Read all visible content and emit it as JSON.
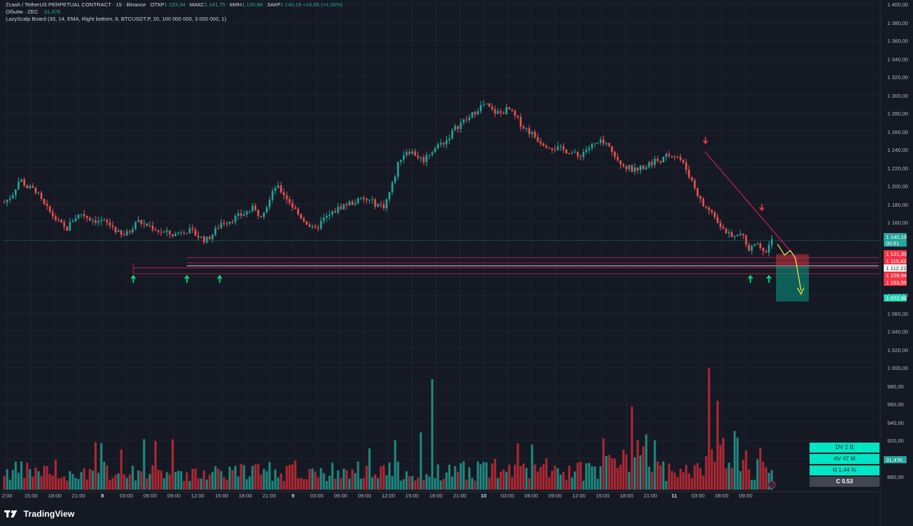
{
  "header": {
    "symbol": "Zcash / TetherUS PERPETUAL CONTRACT · 15 · Binance",
    "open_label": "ОТКР",
    "open": "1 123,34",
    "high_label": "МАКС",
    "high": "1 141,75",
    "low_label": "МИН",
    "low": "1 120,88",
    "close_label": "ЗАКР",
    "close": "1 140,19",
    "change": "+16,86 (+1,50%)",
    "volume_label": "Объём · ZEC",
    "volume_value": "31,47K",
    "indicator": "LazyScalp Board (30, 14, EMA, Right bottom, 8, BTCUSDT.P, 20, 100 000 000, 3 000 000, 1)"
  },
  "price_axis": {
    "ticks": [
      "1 400,00",
      "1 380,00",
      "1 360,00",
      "1 340,00",
      "1 320,00",
      "1 300,00",
      "1 280,00",
      "1 260,00",
      "1 240,00",
      "1 220,00",
      "1 200,00",
      "1 180,00",
      "1 160,00",
      "1 080,00",
      "1 060,00",
      "1 040,00",
      "1 020,00",
      "1 000,00",
      "980,00",
      "960,00",
      "940,00",
      "920,00",
      "900,00",
      "880,00"
    ],
    "tags": [
      {
        "text": "1 140,19",
        "color": "#26a69a"
      },
      {
        "text": "00:51",
        "color": "#26a69a"
      },
      {
        "text": "1 121,35",
        "color": "#f23645"
      },
      {
        "text": "1 115,42",
        "color": "#f23645"
      },
      {
        "text": "1 112,22",
        "color": "#ffffff"
      },
      {
        "text": "1 109,94",
        "color": "#f23645"
      },
      {
        "text": "1 103,55",
        "color": "#f23645"
      },
      {
        "text": "1 072,96",
        "color": "#22d3b4"
      },
      {
        "text": "31,47K",
        "color": "#26a69a"
      }
    ]
  },
  "time_axis": {
    "labels": [
      "2:00",
      "15:00",
      "18:00",
      "21:00",
      "8",
      "03:00",
      "06:00",
      "09:00",
      "12:00",
      "15:00",
      "18:00",
      "21:00",
      "9",
      "03:00",
      "06:00",
      "09:00",
      "12:00",
      "15:00",
      "18:00",
      "21:00",
      "10",
      "03:00",
      "06:00",
      "09:00",
      "12:00",
      "15:00",
      "18:00",
      "21:00",
      "11",
      "03:00",
      "06:00",
      "09:00"
    ]
  },
  "stats_board": {
    "dv": "DV 2 B",
    "av": "AV 47 M",
    "n": "N 1.44 %",
    "c": "C  0.53"
  },
  "footer": {
    "logo_text": "TradingView"
  },
  "colors": {
    "up": "#26a69a",
    "down": "#ef5350",
    "level_line": "#e91e63",
    "signal_up": "#00e676",
    "signal_down": "#f23645",
    "forecast": "#ffeb3b",
    "background": "#151924"
  },
  "chart_data": {
    "type": "candlestick",
    "y_price_range": [
      1060,
      1400
    ],
    "time_labels": [
      "2:00",
      "15:00",
      "18:00",
      "21:00",
      "8",
      "03:00",
      "06:00",
      "09:00",
      "12:00",
      "15:00",
      "18:00",
      "21:00",
      "9",
      "03:00",
      "06:00",
      "09:00",
      "12:00",
      "15:00",
      "18:00",
      "21:00",
      "10",
      "03:00",
      "06:00",
      "09:00",
      "12:00",
      "15:00",
      "18:00",
      "21:00",
      "11",
      "03:00",
      "06:00",
      "09:00"
    ],
    "price_path": [
      1182,
      1190,
      1208,
      1198,
      1196,
      1180,
      1170,
      1160,
      1152,
      1165,
      1170,
      1164,
      1162,
      1160,
      1155,
      1145,
      1148,
      1162,
      1158,
      1155,
      1150,
      1148,
      1146,
      1152,
      1150,
      1145,
      1140,
      1148,
      1160,
      1162,
      1166,
      1170,
      1175,
      1168,
      1180,
      1200,
      1192,
      1180,
      1168,
      1160,
      1150,
      1162,
      1168,
      1175,
      1180,
      1182,
      1185,
      1184,
      1180,
      1178,
      1200,
      1230,
      1240,
      1235,
      1228,
      1238,
      1245,
      1250,
      1262,
      1270,
      1275,
      1285,
      1290,
      1282,
      1280,
      1285,
      1275,
      1265,
      1258,
      1250,
      1245,
      1242,
      1240,
      1238,
      1232,
      1240,
      1245,
      1248,
      1242,
      1232,
      1222,
      1218,
      1220,
      1224,
      1228,
      1230,
      1236,
      1232,
      1218,
      1200,
      1180,
      1172,
      1162,
      1150,
      1142,
      1148,
      1130,
      1135,
      1125,
      1140
    ],
    "levels": [
      {
        "price": 1121.35,
        "label": "1 121,35"
      },
      {
        "price": 1115.42,
        "label": "1 115,42"
      },
      {
        "price": 1112.22,
        "label": "1 112,22"
      },
      {
        "price": 1109.94,
        "label": "1 109,94"
      },
      {
        "price": 1103.55,
        "label": "1 103,55"
      }
    ],
    "last_price": 1140.19,
    "target_price": 1072.96,
    "volume_label": "31,47K"
  }
}
